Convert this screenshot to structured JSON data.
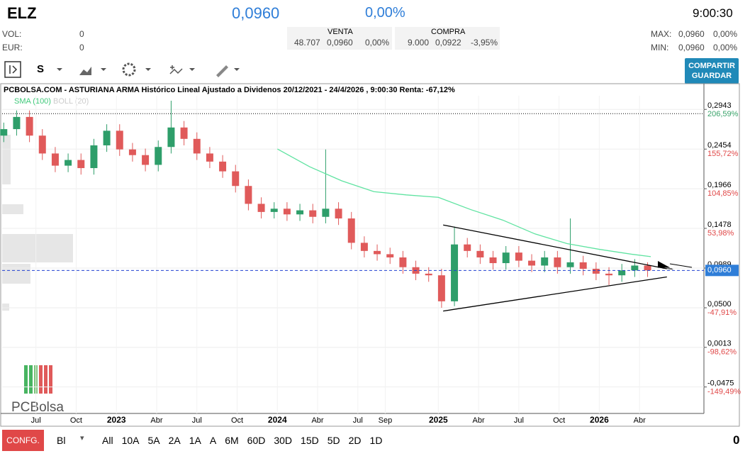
{
  "header": {
    "ticker": "ELZ",
    "price": "0,0960",
    "change": "0,00%",
    "time": "9:00:30",
    "vol_label": "VOL:",
    "vol": "0",
    "eur_label": "EUR:",
    "eur": "0",
    "sell": {
      "label": "VENTA",
      "qty": "48.707",
      "price": "0,0960",
      "pct": "0,00%"
    },
    "buy": {
      "label": "COMPRA",
      "qty": "9.000",
      "price": "0,0922",
      "pct": "-3,95%"
    },
    "max": {
      "label": "MAX:",
      "price": "0,0960",
      "pct": "0,00%"
    },
    "min": {
      "label": "MIN:",
      "price": "0,0960",
      "pct": "0,00%"
    }
  },
  "toolbar": {
    "period": "S",
    "share": "COMPARTIR",
    "save": "GUARDAR"
  },
  "chart_data": {
    "type": "candlestick",
    "title": "PCBOLSA.COM - ASTURIANA ARMA Histórico Lineal Ajustado a Dividenos 20/12/2021 - 24/4/2026 , 9:00:30 Renta: -67,12%",
    "legend": [
      "SMA (100)",
      "BOLL (20)"
    ],
    "up_color": "#2e9e6a",
    "down_color": "#e05a5a",
    "sma_color": "#5fe3a1",
    "xlim": [
      2022.29,
      2026.65
    ],
    "xticks": [
      {
        "value": 2022.5,
        "label": "Jul"
      },
      {
        "value": 2022.75,
        "label": "Oct"
      },
      {
        "value": 2023,
        "label": "2023"
      },
      {
        "value": 2023.25,
        "label": "Abr"
      },
      {
        "value": 2023.5,
        "label": "Jul"
      },
      {
        "value": 2023.75,
        "label": "Oct"
      },
      {
        "value": 2024,
        "label": "2024"
      },
      {
        "value": 2024.25,
        "label": "Abr"
      },
      {
        "value": 2024.5,
        "label": "Jul"
      },
      {
        "value": 2024.67,
        "label": "Sep"
      },
      {
        "value": 2025,
        "label": "2025"
      },
      {
        "value": 2025.25,
        "label": "Abr"
      },
      {
        "value": 2025.5,
        "label": "Jul"
      },
      {
        "value": 2025.75,
        "label": "Oct"
      },
      {
        "value": 2026,
        "label": "2026"
      },
      {
        "value": 2026.25,
        "label": "Abr"
      }
    ],
    "ylim": [
      -0.0801,
      0.3111
    ],
    "yticks": [
      {
        "value": 0.2943,
        "label": "0,2943"
      },
      {
        "value": 0.2454,
        "label": "0,2454"
      },
      {
        "value": 0.1966,
        "label": "0,1966"
      },
      {
        "value": 0.1478,
        "label": "0,1478"
      },
      {
        "value": 0.0989,
        "label": "0,0989"
      },
      {
        "value": 0.05,
        "label": "0,0500"
      },
      {
        "value": 0.0013,
        "label": "0,0013"
      },
      {
        "value": -0.0475,
        "label": "-0,0475"
      }
    ],
    "ytick_pct": [
      "206,59%",
      "155,72%",
      "104,85%",
      "53,98%",
      null,
      "-47,91%",
      "-98,62%",
      "-149,49%"
    ],
    "last": {
      "value": 0.096,
      "label": "0,0960"
    },
    "max_line": 0.289,
    "x": [
      2022.3,
      2022.38,
      2022.46,
      2022.54,
      2022.62,
      2022.7,
      2022.78,
      2022.86,
      2022.94,
      2023.02,
      2023.1,
      2023.18,
      2023.26,
      2023.34,
      2023.42,
      2023.5,
      2023.58,
      2023.66,
      2023.74,
      2023.82,
      2023.9,
      2023.98,
      2024.06,
      2024.14,
      2024.22,
      2024.3,
      2024.38,
      2024.46,
      2024.54,
      2024.62,
      2024.7,
      2024.78,
      2024.86,
      2024.94,
      2025.02,
      2025.1,
      2025.18,
      2025.26,
      2025.34,
      2025.42,
      2025.5,
      2025.58,
      2025.66,
      2025.74,
      2025.82,
      2025.9,
      2025.98,
      2026.06,
      2026.14,
      2026.22,
      2026.3
    ],
    "open": [
      0.262,
      0.27,
      0.285,
      0.262,
      0.24,
      0.225,
      0.232,
      0.222,
      0.25,
      0.268,
      0.245,
      0.238,
      0.226,
      0.248,
      0.272,
      0.258,
      0.24,
      0.23,
      0.218,
      0.2,
      0.178,
      0.168,
      0.172,
      0.165,
      0.17,
      0.162,
      0.172,
      0.16,
      0.13,
      0.12,
      0.116,
      0.112,
      0.1,
      0.092,
      0.09,
      0.058,
      0.128,
      0.12,
      0.112,
      0.105,
      0.118,
      0.108,
      0.102,
      0.112,
      0.1,
      0.106,
      0.098,
      0.092,
      0.09,
      0.096,
      0.102
    ],
    "high": [
      0.278,
      0.293,
      0.293,
      0.27,
      0.248,
      0.24,
      0.24,
      0.258,
      0.276,
      0.276,
      0.253,
      0.246,
      0.256,
      0.305,
      0.28,
      0.266,
      0.248,
      0.238,
      0.226,
      0.208,
      0.186,
      0.18,
      0.18,
      0.178,
      0.178,
      0.245,
      0.18,
      0.168,
      0.138,
      0.128,
      0.124,
      0.12,
      0.108,
      0.1,
      0.098,
      0.15,
      0.136,
      0.128,
      0.12,
      0.126,
      0.126,
      0.116,
      0.12,
      0.12,
      0.16,
      0.114,
      0.106,
      0.1,
      0.104,
      0.11,
      0.106
    ],
    "low": [
      0.254,
      0.262,
      0.254,
      0.232,
      0.217,
      0.217,
      0.214,
      0.214,
      0.242,
      0.237,
      0.23,
      0.218,
      0.218,
      0.24,
      0.25,
      0.232,
      0.222,
      0.21,
      0.192,
      0.17,
      0.16,
      0.16,
      0.157,
      0.157,
      0.154,
      0.154,
      0.152,
      0.122,
      0.112,
      0.108,
      0.104,
      0.092,
      0.084,
      0.082,
      0.05,
      0.052,
      0.112,
      0.104,
      0.097,
      0.097,
      0.1,
      0.094,
      0.094,
      0.092,
      0.092,
      0.09,
      0.084,
      0.078,
      0.082,
      0.088,
      0.088
    ],
    "close": [
      0.27,
      0.285,
      0.262,
      0.24,
      0.225,
      0.232,
      0.222,
      0.25,
      0.268,
      0.245,
      0.238,
      0.226,
      0.248,
      0.272,
      0.258,
      0.24,
      0.23,
      0.218,
      0.2,
      0.178,
      0.168,
      0.172,
      0.165,
      0.17,
      0.162,
      0.172,
      0.16,
      0.13,
      0.12,
      0.116,
      0.112,
      0.1,
      0.092,
      0.09,
      0.058,
      0.128,
      0.12,
      0.112,
      0.105,
      0.118,
      0.108,
      0.102,
      0.112,
      0.1,
      0.106,
      0.098,
      0.092,
      0.09,
      0.096,
      0.102,
      0.096
    ],
    "sma": {
      "x": [
        2024.0,
        2024.2,
        2024.4,
        2024.6,
        2024.8,
        2025.0,
        2025.2,
        2025.4,
        2025.6,
        2025.8,
        2026.0,
        2026.2,
        2026.32
      ],
      "values": [
        0.2456,
        0.2237,
        0.2063,
        0.193,
        0.189,
        0.186,
        0.171,
        0.158,
        0.141,
        0.129,
        0.122,
        0.116,
        0.113
      ]
    },
    "trendlines": [
      {
        "x": [
          2025.03,
          2026.42
        ],
        "values": [
          0.152,
          0.098
        ]
      },
      {
        "x": [
          2025.03,
          2026.42
        ],
        "values": [
          0.046,
          0.088
        ]
      }
    ]
  },
  "footer": {
    "config": "CONFG.",
    "mode": "Bl",
    "periods": [
      "All",
      "10A",
      "5A",
      "2A",
      "1A",
      "A",
      "6M",
      "60D",
      "30D",
      "15D",
      "5D",
      "2D",
      "1D"
    ],
    "count": "0"
  },
  "logo": "PCBolsa"
}
